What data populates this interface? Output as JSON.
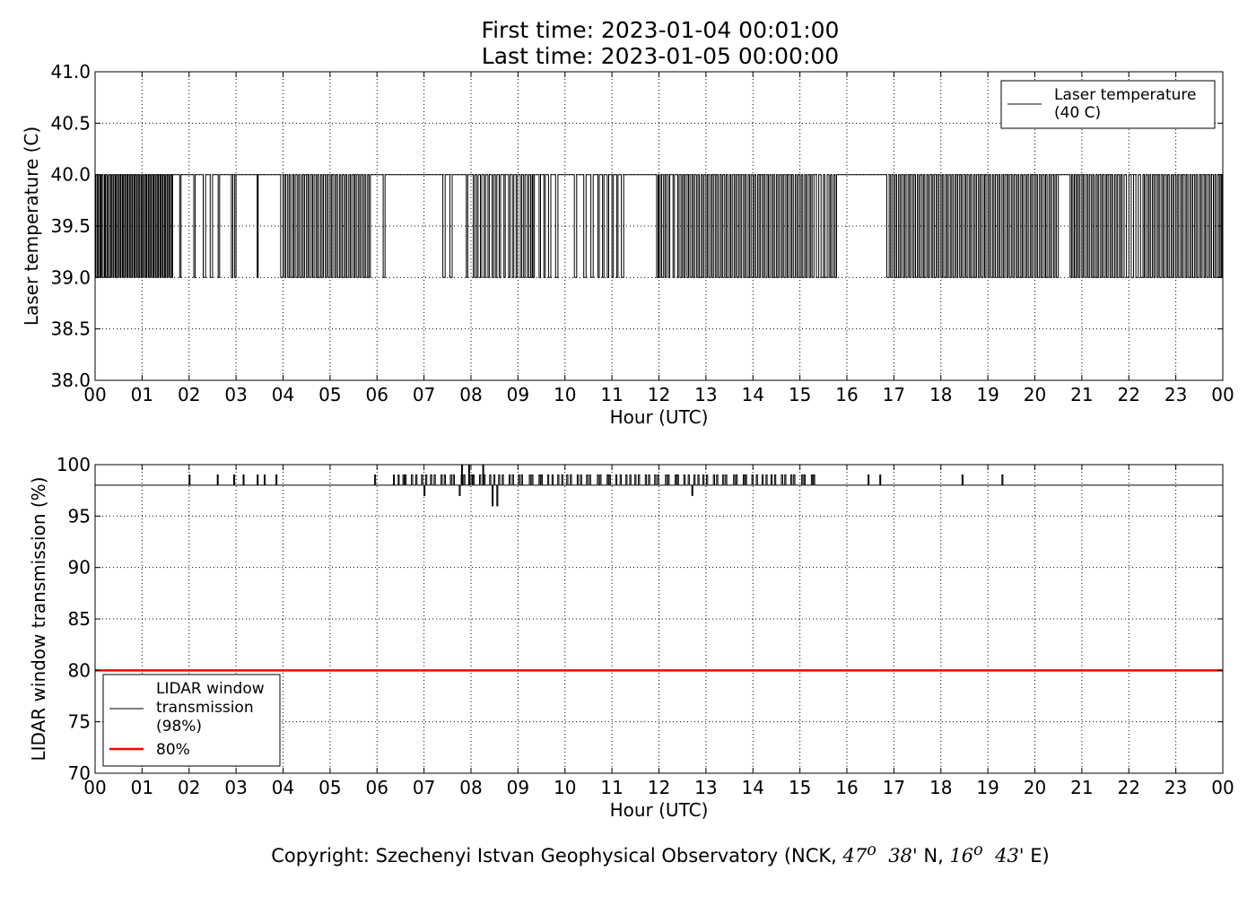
{
  "header": {
    "title_line1": "First time: 2023-01-04 00:01:00",
    "title_line2": "Last time: 2023-01-05 00:00:00"
  },
  "footer": {
    "copyright_prefix": "Copyright: Szechenyi Istvan Geophysical Observatory (NCK, ",
    "lat_deg": "47",
    "lat_deg_sup": "o",
    "lat_min": "38'",
    "lat_suffix": " N, ",
    "lon_deg": "16",
    "lon_deg_sup": "o",
    "lon_min": "43'",
    "lon_suffix": " E)"
  },
  "chart_data": [
    {
      "type": "line",
      "name": "laser-temperature",
      "ylabel": "Laser temperature (C)",
      "xlabel": "Hour (UTC)",
      "xlim": [
        0,
        24
      ],
      "ylim": [
        38.0,
        41.0
      ],
      "x_tick_labels": [
        "00",
        "01",
        "02",
        "03",
        "04",
        "05",
        "06",
        "07",
        "08",
        "09",
        "10",
        "11",
        "12",
        "13",
        "14",
        "15",
        "16",
        "17",
        "18",
        "19",
        "20",
        "21",
        "22",
        "23",
        "00"
      ],
      "y_tick_labels": [
        "38.0",
        "38.5",
        "39.0",
        "39.5",
        "40.0",
        "40.5",
        "41.0"
      ],
      "y_ticks": [
        38.0,
        38.5,
        39.0,
        39.5,
        40.0,
        40.5,
        41.0
      ],
      "grid": true,
      "legend_position": "top-right",
      "legend": [
        "Laser temperature",
        "(40 C)"
      ],
      "series": [
        {
          "name": "Laser temperature (40 C)",
          "color": "#000000",
          "low_value": 39.0,
          "high_value": 40.0,
          "description_values": "signal toggles between 39.0 and 40.0 C",
          "toggle_hours": [
            0.02,
            0.05,
            0.07,
            0.1,
            0.12,
            0.14,
            0.17,
            0.2,
            0.22,
            0.25,
            0.27,
            0.3,
            0.33,
            0.35,
            0.38,
            0.4,
            0.43,
            0.45,
            0.48,
            0.5,
            0.53,
            0.55,
            0.58,
            0.6,
            0.63,
            0.65,
            0.68,
            0.7,
            0.73,
            0.75,
            0.78,
            0.8,
            0.83,
            0.85,
            0.88,
            0.9,
            0.93,
            0.95,
            0.98,
            1.0,
            1.03,
            1.05,
            1.08,
            1.1,
            1.13,
            1.15,
            1.18,
            1.2,
            1.23,
            1.25,
            1.28,
            1.3,
            1.33,
            1.35,
            1.38,
            1.4,
            1.43,
            1.45,
            1.48,
            1.5,
            1.53,
            1.55,
            1.58,
            1.6,
            1.63,
            1.65,
            1.8,
            1.83,
            2.1,
            2.13,
            2.3,
            2.35,
            2.45,
            2.5,
            2.62,
            2.65,
            2.9,
            2.93,
            2.97,
            3.0,
            3.45,
            3.47,
            3.95,
            4.0,
            4.03,
            4.06,
            4.1,
            4.13,
            4.16,
            4.2,
            4.23,
            4.26,
            4.3,
            4.33,
            4.36,
            4.4,
            4.43,
            4.46,
            4.5,
            4.53,
            4.56,
            4.6,
            4.63,
            4.66,
            4.7,
            4.73,
            4.76,
            4.8,
            4.83,
            4.86,
            4.9,
            4.93,
            4.96,
            5.0,
            5.03,
            5.06,
            5.1,
            5.13,
            5.16,
            5.2,
            5.23,
            5.26,
            5.3,
            5.33,
            5.36,
            5.4,
            5.43,
            5.46,
            5.5,
            5.53,
            5.56,
            5.6,
            5.63,
            5.66,
            5.7,
            5.73,
            5.76,
            5.8,
            5.83,
            5.86,
            6.13,
            6.17,
            7.4,
            7.45,
            7.55,
            7.6,
            7.9,
            7.93,
            8.05,
            8.08,
            8.12,
            8.15,
            8.2,
            8.23,
            8.28,
            8.31,
            8.36,
            8.39,
            8.45,
            8.48,
            8.52,
            8.55,
            8.6,
            8.63,
            8.7,
            8.73,
            8.8,
            8.83,
            8.88,
            8.91,
            8.96,
            8.99,
            9.05,
            9.08,
            9.12,
            9.15,
            9.2,
            9.23,
            9.27,
            9.3,
            9.32,
            9.35,
            9.45,
            9.48,
            9.55,
            9.58,
            9.65,
            9.7,
            9.8,
            9.85,
            10.2,
            10.25,
            10.4,
            10.45,
            10.55,
            10.6,
            10.7,
            10.73,
            10.8,
            10.83,
            10.9,
            10.93,
            11.0,
            11.03,
            11.1,
            11.13,
            11.2,
            11.25,
            11.95,
            11.98,
            12.0,
            12.03,
            12.06,
            12.1,
            12.13,
            12.16,
            12.2,
            12.23,
            12.3,
            12.33,
            12.4,
            12.43,
            12.47,
            12.5,
            12.53,
            12.56,
            12.6,
            12.63,
            12.66,
            12.7,
            12.73,
            12.76,
            12.8,
            12.83,
            12.86,
            12.9,
            12.93,
            12.96,
            13.0,
            13.03,
            13.06,
            13.1,
            13.13,
            13.16,
            13.2,
            13.23,
            13.26,
            13.3,
            13.33,
            13.36,
            13.4,
            13.43,
            13.46,
            13.5,
            13.53,
            13.56,
            13.6,
            13.63,
            13.66,
            13.7,
            13.73,
            13.76,
            13.8,
            13.83,
            13.86,
            13.9,
            13.93,
            13.96,
            14.0,
            14.03,
            14.06,
            14.1,
            14.13,
            14.16,
            14.2,
            14.23,
            14.26,
            14.3,
            14.33,
            14.36,
            14.4,
            14.43,
            14.46,
            14.5,
            14.53,
            14.56,
            14.6,
            14.63,
            14.66,
            14.7,
            14.73,
            14.76,
            14.8,
            14.83,
            14.86,
            14.9,
            14.93,
            14.96,
            15.0,
            15.03,
            15.06,
            15.1,
            15.13,
            15.16,
            15.2,
            15.23,
            15.26,
            15.3,
            15.35,
            15.4,
            15.45,
            15.5,
            15.53,
            15.58,
            15.62,
            15.65,
            15.68,
            15.72,
            15.75,
            15.78,
            16.85,
            16.9,
            16.93,
            16.96,
            17.0,
            17.03,
            17.06,
            17.1,
            17.13,
            17.16,
            17.2,
            17.23,
            17.26,
            17.3,
            17.33,
            17.36,
            17.4,
            17.43,
            17.46,
            17.5,
            17.53,
            17.56,
            17.6,
            17.63,
            17.66,
            17.7,
            17.73,
            17.76,
            17.8,
            17.83,
            17.86,
            17.9,
            17.93,
            17.96,
            18.0,
            18.03,
            18.06,
            18.1,
            18.13,
            18.16,
            18.2,
            18.23,
            18.26,
            18.3,
            18.33,
            18.36,
            18.4,
            18.43,
            18.46,
            18.5,
            18.53,
            18.56,
            18.6,
            18.63,
            18.66,
            18.7,
            18.73,
            18.76,
            18.8,
            18.83,
            18.86,
            18.9,
            18.93,
            18.96,
            19.0,
            19.03,
            19.06,
            19.1,
            19.13,
            19.16,
            19.2,
            19.23,
            19.26,
            19.3,
            19.33,
            19.36,
            19.4,
            19.43,
            19.46,
            19.5,
            19.53,
            19.56,
            19.6,
            19.63,
            19.66,
            19.7,
            19.73,
            19.76,
            19.8,
            19.83,
            19.86,
            19.9,
            19.93,
            19.96,
            20.0,
            20.03,
            20.06,
            20.1,
            20.13,
            20.16,
            20.2,
            20.23,
            20.26,
            20.3,
            20.33,
            20.36,
            20.4,
            20.43,
            20.46,
            20.5,
            20.75,
            20.78,
            20.81,
            20.84,
            20.87,
            20.9,
            20.93,
            20.96,
            21.0,
            21.03,
            21.06,
            21.1,
            21.13,
            21.16,
            21.2,
            21.23,
            21.26,
            21.3,
            21.33,
            21.36,
            21.4,
            21.43,
            21.46,
            21.5,
            21.53,
            21.56,
            21.6,
            21.63,
            21.66,
            21.7,
            21.73,
            21.76,
            21.8,
            21.83,
            21.86,
            21.9,
            21.95,
            22.0,
            22.05,
            22.1,
            22.15,
            22.2,
            22.25,
            22.3,
            22.33,
            22.36,
            22.4,
            22.43,
            22.46,
            22.5,
            22.53,
            22.56,
            22.6,
            22.63,
            22.66,
            22.7,
            22.73,
            22.76,
            22.8,
            22.83,
            22.86,
            22.9,
            22.93,
            22.96,
            23.0,
            23.03,
            23.06,
            23.1,
            23.13,
            23.16,
            23.2,
            23.23,
            23.26,
            23.3,
            23.33,
            23.36,
            23.4,
            23.43,
            23.46,
            23.5,
            23.53,
            23.56,
            23.6,
            23.63,
            23.66,
            23.7,
            23.73,
            23.76,
            23.8,
            23.83,
            23.86,
            23.9,
            23.93,
            23.96,
            23.98
          ]
        }
      ]
    },
    {
      "type": "line",
      "name": "lidar-window-transmission",
      "ylabel": "LIDAR window transmission (%)",
      "xlabel": "Hour (UTC)",
      "xlim": [
        0,
        24
      ],
      "ylim": [
        70,
        100
      ],
      "x_tick_labels": [
        "00",
        "01",
        "02",
        "03",
        "04",
        "05",
        "06",
        "07",
        "08",
        "09",
        "10",
        "11",
        "12",
        "13",
        "14",
        "15",
        "16",
        "17",
        "18",
        "19",
        "20",
        "21",
        "22",
        "23",
        "00"
      ],
      "y_tick_labels": [
        "70",
        "75",
        "80",
        "85",
        "90",
        "95",
        "100"
      ],
      "y_ticks": [
        70,
        75,
        80,
        85,
        90,
        95,
        100
      ],
      "grid": true,
      "legend_position": "bottom-left",
      "legend": [
        "LIDAR window",
        "transmission",
        "(98%)",
        "80%"
      ],
      "series": [
        {
          "name": "LIDAR window transmission (98%)",
          "color": "#000000",
          "baseline": 98,
          "spikes_up": [
            [
              2.0,
              99
            ],
            [
              2.6,
              99
            ],
            [
              2.95,
              99
            ],
            [
              3.15,
              99
            ],
            [
              3.45,
              99
            ],
            [
              3.6,
              99
            ],
            [
              3.85,
              99
            ],
            [
              5.95,
              99
            ],
            [
              6.35,
              99
            ],
            [
              6.45,
              99
            ],
            [
              7.8,
              100
            ],
            [
              7.95,
              100
            ],
            [
              8.25,
              100
            ],
            [
              16.45,
              99
            ],
            [
              16.7,
              99
            ],
            [
              18.45,
              99
            ],
            [
              19.3,
              99
            ]
          ],
          "spikes_down": [
            [
              7.0,
              97
            ],
            [
              7.75,
              97
            ],
            [
              8.45,
              96
            ],
            [
              8.55,
              96
            ],
            [
              12.7,
              97
            ]
          ],
          "dense_toggle_range_hours": [
            6.55,
            15.3
          ],
          "dense_toggle_values": [
            98,
            99
          ]
        },
        {
          "name": "80%",
          "color": "#ff0000",
          "constant": 80
        }
      ]
    }
  ]
}
